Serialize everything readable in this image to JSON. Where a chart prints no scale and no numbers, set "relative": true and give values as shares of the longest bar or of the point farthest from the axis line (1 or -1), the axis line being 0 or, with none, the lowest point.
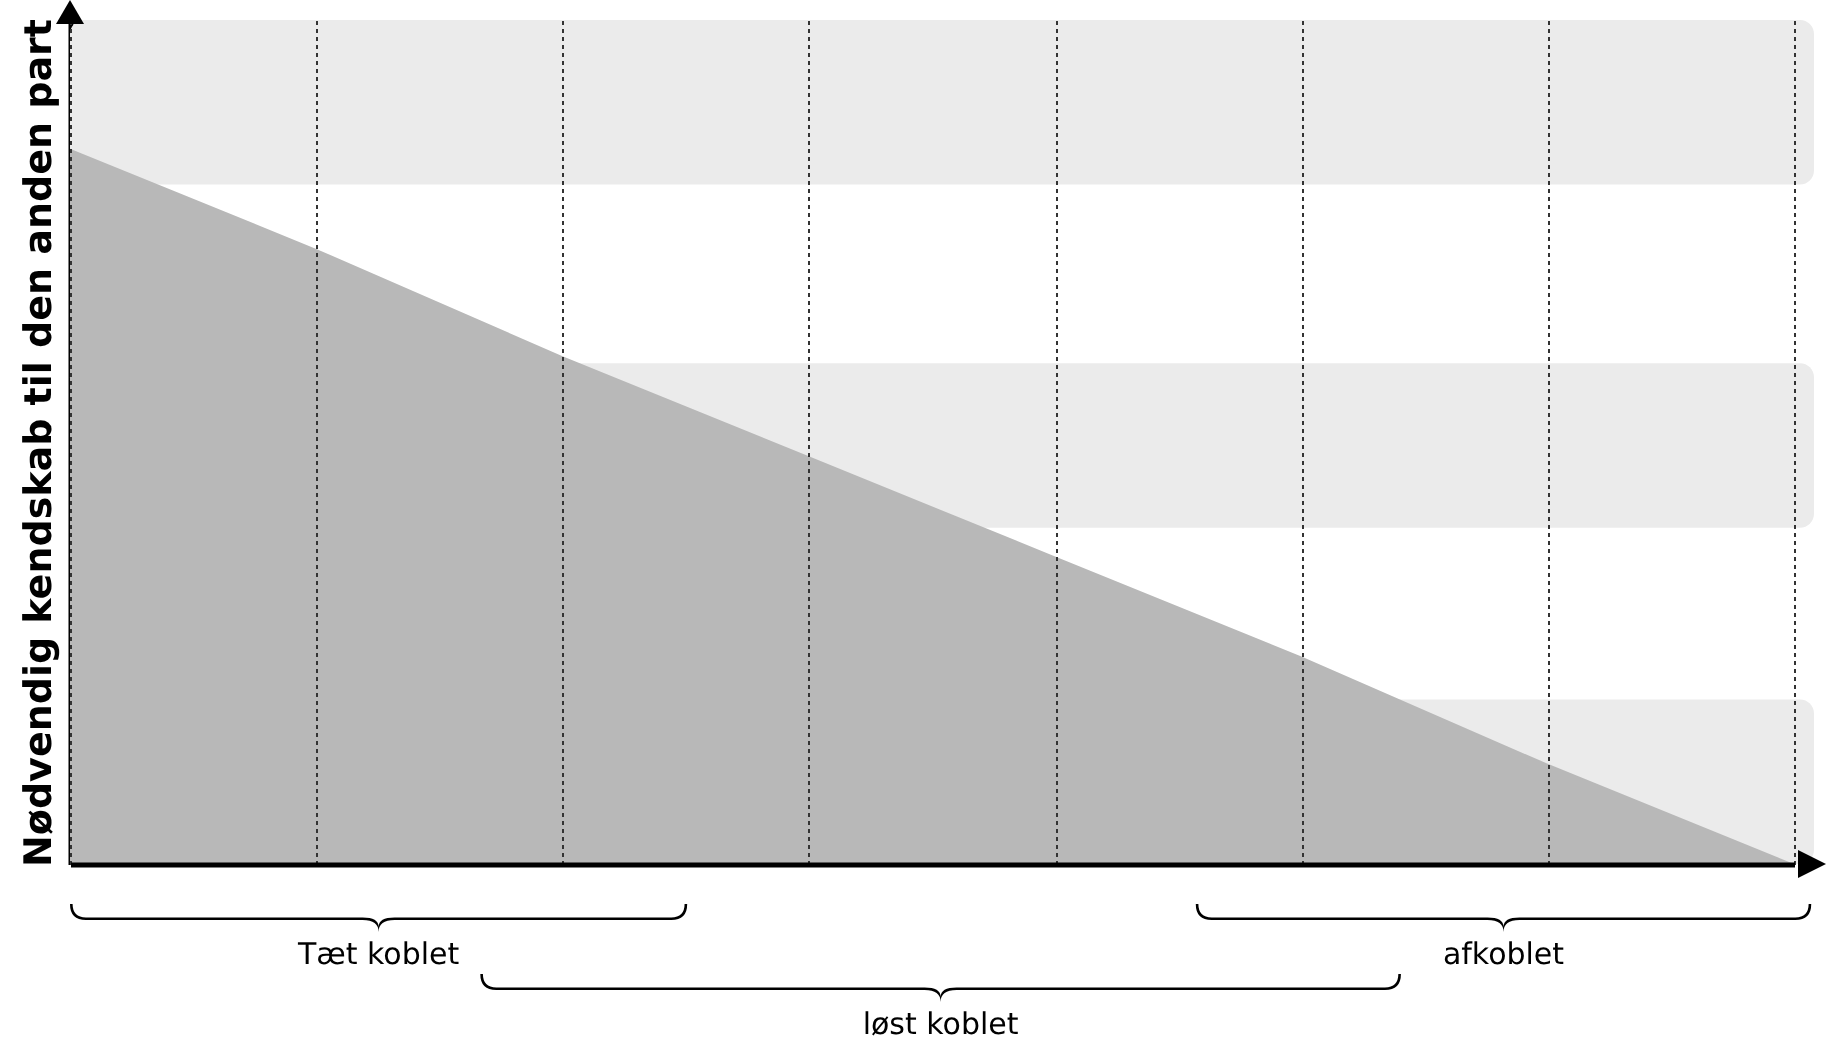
{
  "chart_data": {
    "type": "area",
    "relative": true,
    "ylabel": "Nødvendig kendskab til den anden part",
    "categories": [
      null,
      null,
      null,
      null,
      null,
      null,
      null,
      null
    ],
    "series": [
      {
        "color": "#b8b8b8",
        "values": [
          1,
          0.86,
          0.71,
          0.57,
          0.43,
          0.29,
          0.14,
          0
        ]
      }
    ],
    "bands": [
      {
        "axis": "y",
        "from": 0.95,
        "to": 1.18,
        "color": "#ebebeb"
      },
      {
        "axis": "y",
        "from": 0.47,
        "to": 0.7,
        "color": "#ebebeb"
      },
      {
        "axis": "y",
        "from": 0,
        "to": 0.23,
        "color": "#ebebeb"
      }
    ],
    "grid": "x",
    "annotations": [
      "Tæt koblet",
      "løst koblet",
      "afkoblet"
    ]
  }
}
